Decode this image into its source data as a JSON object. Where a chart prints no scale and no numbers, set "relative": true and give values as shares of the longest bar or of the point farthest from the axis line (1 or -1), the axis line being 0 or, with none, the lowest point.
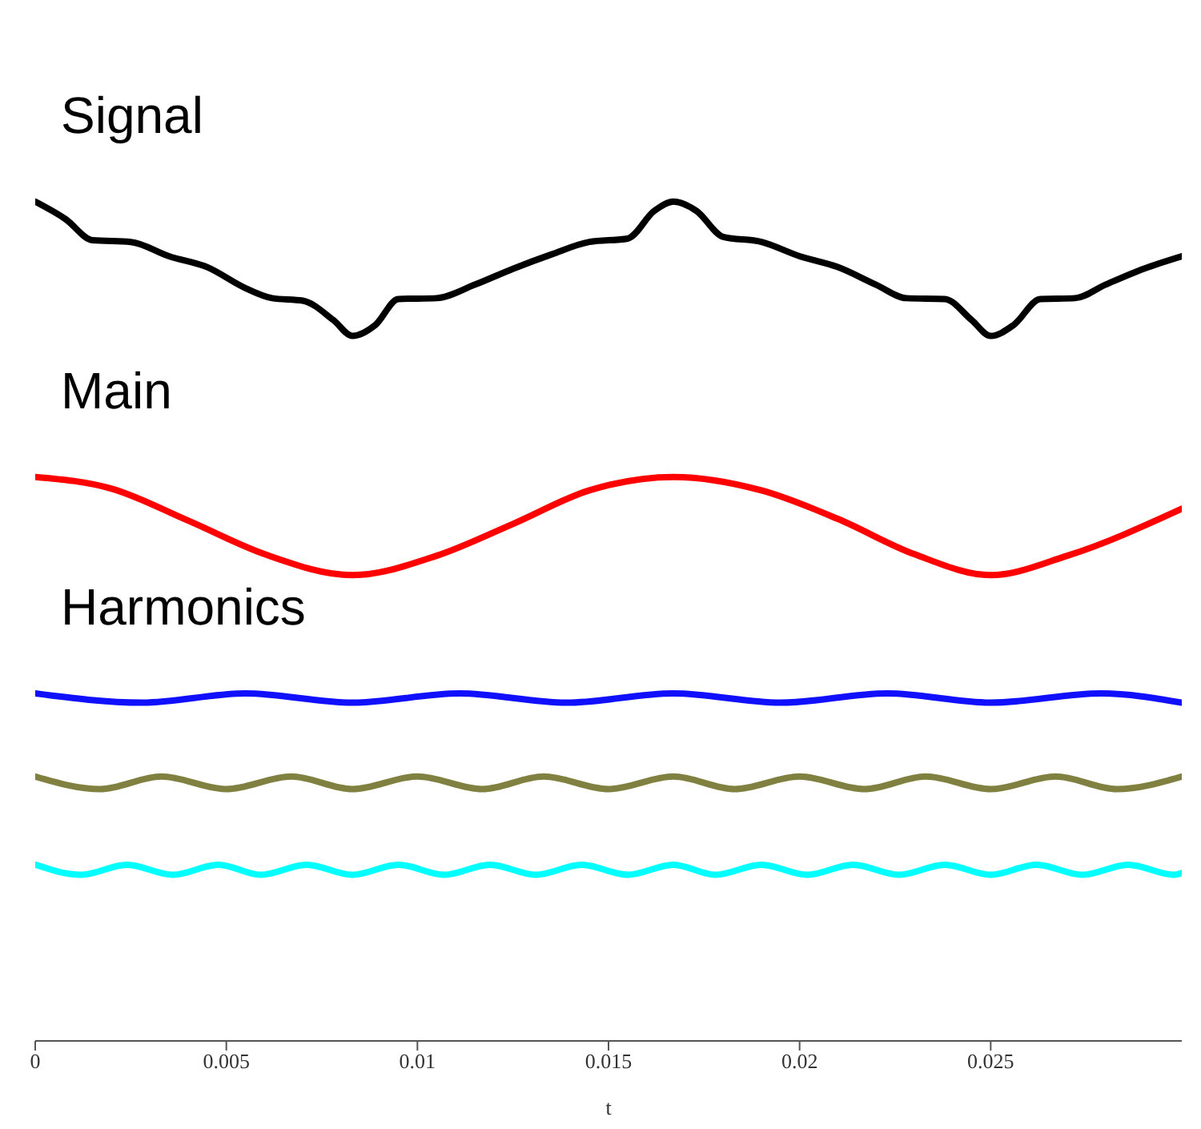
{
  "chart_data": {
    "type": "line",
    "relative": true,
    "xlabel": "t",
    "xlim": [
      0,
      0.03
    ],
    "xticks": [
      0,
      0.005,
      0.01,
      0.015,
      0.02,
      0.025
    ],
    "marker": "none",
    "line_style": "solid",
    "annotations": [
      "Signal",
      "Main",
      "Harmonics"
    ],
    "series": [
      {
        "color": "#000000",
        "x": [
          0,
          0.0008,
          0.0015,
          0.0025,
          0.0035,
          0.0045,
          0.0055,
          0.0062,
          0.007,
          0.0078,
          0.0083,
          0.0089,
          0.0095,
          0.0105,
          0.0115,
          0.0125,
          0.0135,
          0.0145,
          0.0155,
          0.0162,
          0.0167,
          0.0173,
          0.018,
          0.019,
          0.02,
          0.021,
          0.022,
          0.0228,
          0.0238,
          0.0245,
          0.025,
          0.0256,
          0.0263,
          0.0272,
          0.028,
          0.029,
          0.03
        ],
        "values": [
          1.0,
          0.979,
          0.954,
          0.952,
          0.935,
          0.922,
          0.897,
          0.885,
          0.882,
          0.859,
          0.84,
          0.853,
          0.884,
          0.885,
          0.901,
          0.92,
          0.937,
          0.952,
          0.956,
          0.989,
          1.0,
          0.989,
          0.958,
          0.952,
          0.935,
          0.922,
          0.901,
          0.885,
          0.884,
          0.859,
          0.84,
          0.853,
          0.884,
          0.885,
          0.901,
          0.92,
          0.935
        ]
      },
      {
        "color": "#ff0000",
        "x": [
          0,
          0.002,
          0.004,
          0.006,
          0.0083,
          0.0105,
          0.0125,
          0.0145,
          0.0167,
          0.019,
          0.021,
          0.023,
          0.025,
          0.027,
          0.03
        ],
        "values": [
          0.672,
          0.658,
          0.62,
          0.58,
          0.555,
          0.578,
          0.616,
          0.656,
          0.672,
          0.656,
          0.622,
          0.58,
          0.555,
          0.578,
          0.634
        ]
      },
      {
        "color": "#1010ff",
        "x": [
          0,
          0.0028,
          0.0055,
          0.0083,
          0.0111,
          0.0139,
          0.0167,
          0.0195,
          0.0223,
          0.025,
          0.0279,
          0.03
        ],
        "values": [
          0.414,
          0.403,
          0.414,
          0.403,
          0.414,
          0.403,
          0.414,
          0.403,
          0.414,
          0.403,
          0.414,
          0.403
        ]
      },
      {
        "color": "#808040",
        "x": [
          0,
          0.0017,
          0.0033,
          0.005,
          0.0067,
          0.0083,
          0.01,
          0.0117,
          0.0133,
          0.015,
          0.0167,
          0.0183,
          0.02,
          0.0217,
          0.0233,
          0.025,
          0.0267,
          0.0283,
          0.03
        ],
        "values": [
          0.315,
          0.3,
          0.315,
          0.3,
          0.315,
          0.3,
          0.315,
          0.3,
          0.315,
          0.3,
          0.315,
          0.3,
          0.315,
          0.3,
          0.315,
          0.3,
          0.315,
          0.3,
          0.315
        ]
      },
      {
        "color": "#00ffff",
        "x": [
          0,
          0.0012,
          0.0024,
          0.0036,
          0.0048,
          0.0059,
          0.0071,
          0.0083,
          0.0095,
          0.0107,
          0.0119,
          0.0131,
          0.0143,
          0.0155,
          0.0167,
          0.0178,
          0.019,
          0.0202,
          0.0214,
          0.0226,
          0.0238,
          0.025,
          0.0262,
          0.0274,
          0.0286,
          0.0298,
          0.03
        ],
        "values": [
          0.21,
          0.198,
          0.21,
          0.198,
          0.21,
          0.198,
          0.21,
          0.198,
          0.21,
          0.198,
          0.21,
          0.198,
          0.21,
          0.198,
          0.21,
          0.198,
          0.21,
          0.198,
          0.21,
          0.198,
          0.21,
          0.198,
          0.21,
          0.198,
          0.21,
          0.198,
          0.2
        ]
      }
    ]
  }
}
